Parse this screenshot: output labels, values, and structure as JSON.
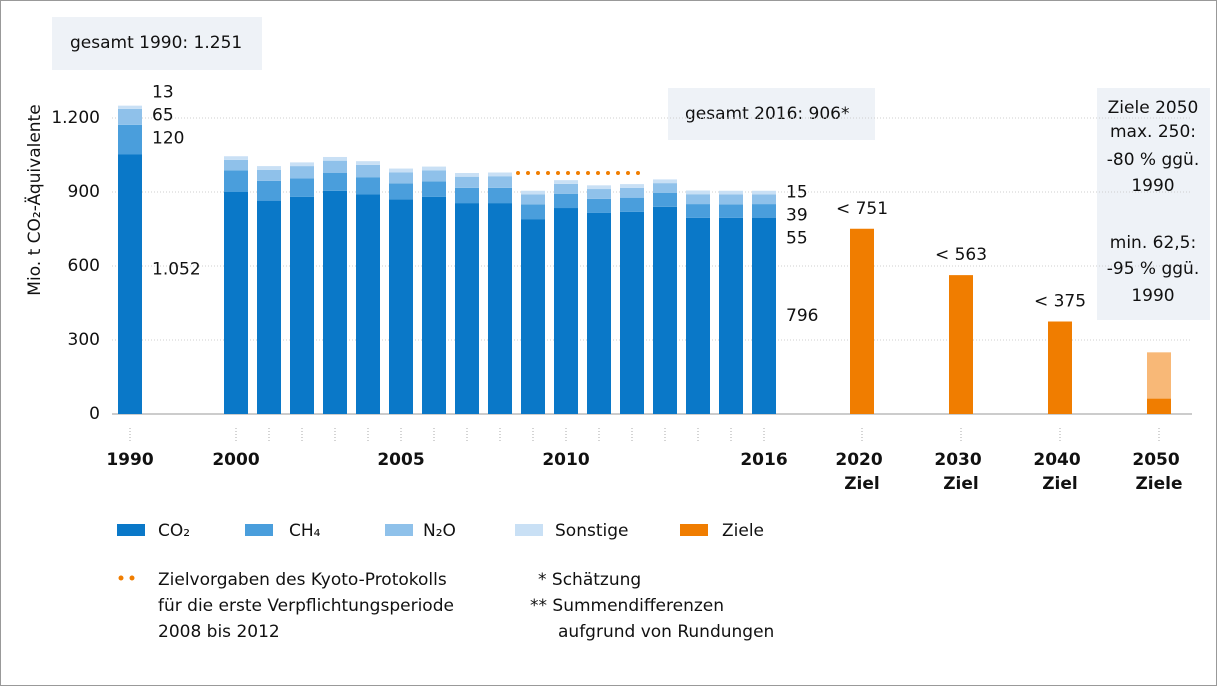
{
  "chart_data": {
    "type": "bar",
    "stacked": true,
    "y_label": "Mio. t CO₂-Äquivalente",
    "categories": [
      "1990",
      "2000",
      null,
      null,
      null,
      null,
      "2005",
      null,
      null,
      null,
      null,
      "2010",
      null,
      null,
      null,
      null,
      null,
      "2016",
      "2020 Ziel",
      "2030 Ziel",
      "2040 Ziel",
      "2050 Ziele"
    ],
    "series": [
      {
        "name": "CO₂",
        "color": "#0a78c8",
        "values": [
          1052,
          900,
          865,
          880,
          905,
          890,
          870,
          880,
          855,
          855,
          790,
          835,
          815,
          820,
          840,
          795,
          795,
          796,
          null,
          null,
          null,
          null
        ],
        "value_labels": [
          "1.052",
          null,
          null,
          null,
          null,
          null,
          null,
          null,
          null,
          null,
          null,
          null,
          null,
          null,
          null,
          null,
          null,
          "796",
          null,
          null,
          null,
          null
        ]
      },
      {
        "name": "CH₄",
        "color": "#4a9edc",
        "values": [
          120,
          88,
          80,
          75,
          72,
          70,
          65,
          63,
          62,
          62,
          60,
          58,
          57,
          57,
          56,
          56,
          55,
          55,
          null,
          null,
          null,
          null
        ],
        "value_labels": [
          "120",
          null,
          null,
          null,
          null,
          null,
          null,
          null,
          null,
          null,
          null,
          null,
          null,
          null,
          null,
          null,
          null,
          "55",
          null,
          null,
          null,
          null
        ]
      },
      {
        "name": "N₂O",
        "color": "#8fc1ea",
        "values": [
          65,
          42,
          45,
          50,
          50,
          50,
          45,
          45,
          45,
          47,
          40,
          40,
          40,
          40,
          40,
          40,
          40,
          39,
          null,
          null,
          null,
          null
        ],
        "value_labels": [
          "65",
          null,
          null,
          null,
          null,
          null,
          null,
          null,
          null,
          null,
          null,
          null,
          null,
          null,
          null,
          null,
          null,
          "39",
          null,
          null,
          null,
          null
        ]
      },
      {
        "name": "Sonstige",
        "color": "#c9e0f5",
        "values": [
          13,
          15,
          15,
          15,
          15,
          15,
          15,
          15,
          15,
          15,
          15,
          15,
          15,
          15,
          15,
          15,
          15,
          15,
          null,
          null,
          null,
          null
        ],
        "value_labels": [
          "13",
          null,
          null,
          null,
          null,
          null,
          null,
          null,
          null,
          null,
          null,
          null,
          null,
          null,
          null,
          null,
          null,
          "15",
          null,
          null,
          null,
          null
        ]
      },
      {
        "name": "Ziele",
        "color": "#f07d00",
        "values": [
          null,
          null,
          null,
          null,
          null,
          null,
          null,
          null,
          null,
          null,
          null,
          null,
          null,
          null,
          null,
          null,
          null,
          null,
          751,
          563,
          375,
          62.5
        ],
        "value_labels": [
          null,
          null,
          null,
          null,
          null,
          null,
          null,
          null,
          null,
          null,
          null,
          null,
          null,
          null,
          null,
          null,
          null,
          null,
          "< 751",
          "< 563",
          "< 375",
          null
        ]
      },
      {
        "color": "#f8b877",
        "values": [
          null,
          null,
          null,
          null,
          null,
          null,
          null,
          null,
          null,
          null,
          null,
          null,
          null,
          null,
          null,
          null,
          null,
          null,
          null,
          null,
          null,
          187.5
        ]
      }
    ],
    "ylim": [
      0,
      1350
    ],
    "yticks": [
      0,
      300,
      600,
      900,
      {
        "value": 1200,
        "label": "1.200"
      }
    ],
    "grid": true,
    "kyoto": {
      "value": 977,
      "period": [
        2008,
        2012
      ],
      "color": "#f07d00",
      "legend": [
        "Zielvorgaben des Kyoto-Protokolls",
        "für die erste Verpflichtungsperiode",
        "2008 bis 2012"
      ]
    },
    "annotations": {
      "total_1990": "gesamt 1990: 1.251",
      "total_2016": "gesamt 2016: 906*",
      "targets_2050": [
        "Ziele 2050",
        "max. 250:",
        "-80 % ggü.",
        "1990",
        "min. 62,5:",
        "-95 % ggü.",
        "1990"
      ]
    },
    "footnotes": [
      "* Schätzung",
      [
        "** Summendifferenzen",
        "aufgrund von Rundungen"
      ]
    ]
  }
}
